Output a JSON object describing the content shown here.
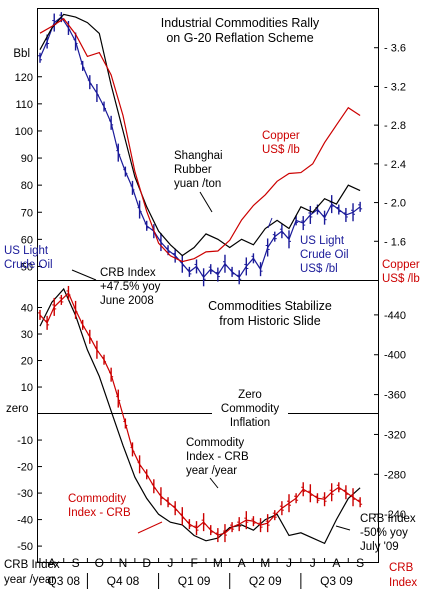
{
  "chart_data": [
    {
      "type": "line",
      "title": "Industrial Commodities Rally on G-20 Reflation Scheme",
      "left_axis_unit": "Bbl",
      "left_ticks": [
        120,
        110,
        100,
        90,
        80,
        70,
        60,
        50
      ],
      "left_range": [
        45,
        145
      ],
      "right_ticks": [
        3.6,
        3.2,
        2.8,
        2.4,
        2.0,
        1.6
      ],
      "right_range": [
        1.2,
        4.0
      ],
      "month_range": [
        0,
        14
      ],
      "annotations": {
        "shanghai": [
          "Shanghai",
          "Rubber",
          "yuan /ton"
        ],
        "copper": [
          "Copper",
          "US$ /lb"
        ],
        "us_light_right": [
          "US Light",
          "Crude Oil",
          "US$ /bl"
        ],
        "us_light_left": [
          "US Light",
          "Crude Oil"
        ],
        "copper_axis": [
          "Copper",
          "US$ /lb"
        ]
      },
      "series": [
        {
          "name": "US Light Crude Oil",
          "axis": "left",
          "color": "#1a1a99",
          "x": [
            0.0,
            0.3,
            0.6,
            0.9,
            1.2,
            1.5,
            1.8,
            2.1,
            2.4,
            2.7,
            3.0,
            3.3,
            3.6,
            3.9,
            4.2,
            4.5,
            4.8,
            5.1,
            5.4,
            5.7,
            6.0,
            6.3,
            6.6,
            6.9,
            7.2,
            7.5,
            7.8,
            8.1,
            8.4,
            8.7,
            9.0,
            9.3,
            9.6,
            9.9,
            10.2,
            10.5,
            10.8,
            11.1,
            11.4,
            11.7,
            12.0,
            12.3,
            12.6,
            12.9,
            13.2,
            13.5
          ],
          "values": [
            127,
            133,
            140,
            142,
            138,
            133,
            124,
            118,
            114,
            109,
            103,
            92,
            85,
            79,
            71,
            65,
            63,
            59,
            56,
            54,
            51,
            48,
            50,
            46,
            49,
            47,
            51,
            48,
            46,
            50,
            53,
            49,
            57,
            61,
            63,
            60,
            67,
            66,
            69,
            71,
            68,
            73,
            71,
            69,
            70,
            72
          ]
        },
        {
          "name": "Shanghai Rubber",
          "axis": "left",
          "color": "#000000",
          "x": [
            0.0,
            0.5,
            1.0,
            1.5,
            2.0,
            2.5,
            3.0,
            3.5,
            4.0,
            4.5,
            5.0,
            5.5,
            6.0,
            6.5,
            7.0,
            7.5,
            8.0,
            8.5,
            9.0,
            9.5,
            10.0,
            10.5,
            11.0,
            11.5,
            12.0,
            12.5,
            13.0,
            13.5
          ],
          "values": [
            130,
            138,
            143,
            142,
            140,
            136,
            117,
            100,
            83,
            72,
            63,
            58,
            54,
            57,
            62,
            60,
            57,
            60,
            58,
            64,
            67,
            64,
            72,
            70,
            75,
            73,
            80,
            78
          ]
        },
        {
          "name": "Copper",
          "axis": "right",
          "color": "#cc0000",
          "x": [
            0.0,
            0.5,
            1.0,
            1.5,
            2.0,
            2.5,
            3.0,
            3.5,
            4.0,
            4.5,
            5.0,
            5.5,
            6.0,
            6.5,
            7.0,
            7.5,
            8.0,
            8.5,
            9.0,
            9.5,
            10.0,
            10.5,
            11.0,
            11.5,
            12.0,
            12.5,
            13.0,
            13.5
          ],
          "values": [
            3.75,
            3.82,
            3.9,
            3.74,
            3.51,
            3.55,
            3.32,
            2.9,
            2.32,
            1.91,
            1.58,
            1.45,
            1.39,
            1.42,
            1.49,
            1.5,
            1.61,
            1.82,
            1.97,
            2.08,
            2.22,
            2.3,
            2.31,
            2.4,
            2.62,
            2.8,
            2.98,
            2.9
          ]
        }
      ]
    },
    {
      "type": "line",
      "title": "Commodities Stabilize from Historic Slide",
      "left_axis_label": [
        "CRB Index",
        "year /year"
      ],
      "left_ticks": [
        40,
        30,
        20,
        10,
        0,
        -10,
        -20,
        -30,
        -40,
        -50
      ],
      "left_range": [
        -56,
        50
      ],
      "zero_label": "zero",
      "right_ticks": [
        440,
        400,
        360,
        320,
        280,
        240
      ],
      "right_range": [
        192,
        474
      ],
      "right_axis_label": [
        "CRB",
        "Index"
      ],
      "month_range": [
        0,
        14
      ],
      "months": [
        "A",
        "S",
        "O",
        "N",
        "D",
        "J",
        "F",
        "M",
        "A",
        "M",
        "J",
        "J",
        "A",
        "S"
      ],
      "quarters": [
        "Q3 08",
        "Q4 08",
        "Q1 09",
        "Q2 09",
        "Q3 09"
      ],
      "annotations": {
        "crb_peak": [
          "CRB Index",
          "+47.5% yoy",
          "June 2008"
        ],
        "zero_infl": [
          "Zero",
          "Commodity",
          "Inflation"
        ],
        "crb_yoy": [
          "Commodity",
          "Index - CRB",
          "year /year"
        ],
        "crb_red": [
          "Commodity",
          "Index - CRB"
        ],
        "crb_low": [
          "CRB Index",
          "-50% yoy",
          "July '09"
        ]
      },
      "series": [
        {
          "name": "Commodity Index - CRB year /year",
          "axis": "left",
          "color": "#000000",
          "x": [
            0.0,
            0.5,
            1.0,
            1.5,
            2.0,
            2.5,
            3.0,
            3.5,
            4.0,
            4.5,
            5.0,
            5.5,
            6.0,
            6.5,
            7.0,
            7.5,
            8.0,
            8.5,
            9.0,
            9.5,
            10.0,
            10.5,
            11.0,
            11.5,
            12.0,
            12.5,
            13.0,
            13.5
          ],
          "values": [
            33,
            42,
            47,
            37,
            24,
            14,
            1,
            -12,
            -24,
            -32,
            -38,
            -41,
            -42,
            -46,
            -48,
            -47,
            -43,
            -42,
            -44,
            -40,
            -38,
            -46,
            -45,
            -47,
            -49,
            -40,
            -32,
            -28
          ]
        },
        {
          "name": "Commodity Index - CRB",
          "axis": "right",
          "color": "#cc0000",
          "x": [
            0.0,
            0.3,
            0.6,
            0.9,
            1.2,
            1.5,
            1.8,
            2.1,
            2.4,
            2.7,
            3.0,
            3.3,
            3.6,
            3.9,
            4.2,
            4.5,
            4.8,
            5.1,
            5.4,
            5.7,
            6.0,
            6.3,
            6.6,
            6.9,
            7.2,
            7.5,
            7.8,
            8.1,
            8.4,
            8.7,
            9.0,
            9.3,
            9.6,
            9.9,
            10.2,
            10.5,
            10.8,
            11.1,
            11.4,
            11.7,
            12.0,
            12.3,
            12.6,
            12.9,
            13.2,
            13.5
          ],
          "values": [
            440,
            432,
            448,
            455,
            462,
            445,
            430,
            418,
            405,
            395,
            380,
            356,
            331,
            305,
            290,
            280,
            268,
            258,
            252,
            246,
            238,
            230,
            226,
            232,
            224,
            219,
            221,
            227,
            230,
            234,
            233,
            229,
            231,
            239,
            246,
            251,
            256,
            265,
            261,
            256,
            255,
            262,
            267,
            262,
            257,
            252
          ]
        }
      ]
    }
  ]
}
